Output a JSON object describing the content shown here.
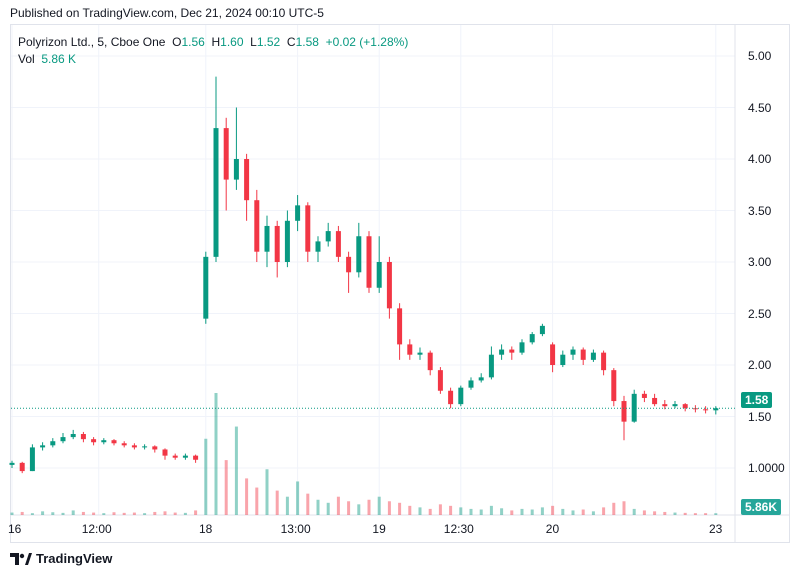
{
  "published": "Published on TradingView.com, Dec 21, 2024 00:10 UTC-5",
  "legend": {
    "symbol": "Polyrizon Ltd., 5, Cboe One",
    "o_label": "O",
    "o": "1.56",
    "h_label": "H",
    "h": "1.60",
    "l_label": "L",
    "l": "1.52",
    "c_label": "C",
    "c": "1.58",
    "change": "+0.02 (+1.28%)",
    "vol_label": "Vol",
    "vol": "5.86 K"
  },
  "colors": {
    "up": "#089981",
    "down": "#f23645",
    "last_price": "#089981",
    "volume_tag": "#26a69a"
  },
  "price_tag": "1.58",
  "volume_tag": "5.86K",
  "footer": {
    "logo_text": "TradingView",
    "icon": "tradingview-logo-icon"
  },
  "chart_data": {
    "type": "candlestick",
    "price_axis": {
      "ticks": [
        "5.00",
        "4.50",
        "4.00",
        "3.50",
        "3.00",
        "2.50",
        "2.00",
        "1.50",
        "1.0000"
      ],
      "tick_values": [
        5,
        4.5,
        4,
        3.5,
        3,
        2.5,
        2,
        1.5,
        1
      ],
      "range": [
        0.6,
        5.3
      ]
    },
    "time_axis": {
      "ticks": [
        "16",
        "12:00",
        "18",
        "13:00",
        "19",
        "12:30",
        "20",
        "23"
      ],
      "tick_index": [
        0,
        8.5,
        19,
        28,
        36,
        44,
        53,
        69
      ]
    },
    "grid": true,
    "last_price": 1.58,
    "ohlc": [
      [
        1.03,
        1.07,
        1.0,
        1.05
      ],
      [
        1.05,
        1.06,
        0.95,
        0.97
      ],
      [
        0.97,
        1.23,
        0.97,
        1.2
      ],
      [
        1.2,
        1.25,
        1.17,
        1.22
      ],
      [
        1.22,
        1.29,
        1.2,
        1.26
      ],
      [
        1.26,
        1.34,
        1.24,
        1.3
      ],
      [
        1.3,
        1.37,
        1.28,
        1.33
      ],
      [
        1.33,
        1.35,
        1.25,
        1.28
      ],
      [
        1.28,
        1.3,
        1.22,
        1.25
      ],
      [
        1.25,
        1.29,
        1.23,
        1.27
      ],
      [
        1.27,
        1.28,
        1.22,
        1.24
      ],
      [
        1.24,
        1.26,
        1.2,
        1.22
      ],
      [
        1.22,
        1.24,
        1.18,
        1.2
      ],
      [
        1.2,
        1.23,
        1.18,
        1.21
      ],
      [
        1.21,
        1.22,
        1.15,
        1.18
      ],
      [
        1.18,
        1.19,
        1.08,
        1.12
      ],
      [
        1.12,
        1.14,
        1.08,
        1.1
      ],
      [
        1.1,
        1.14,
        1.08,
        1.12
      ],
      [
        1.12,
        1.13,
        1.05,
        1.08
      ],
      [
        2.45,
        3.1,
        2.4,
        3.05
      ],
      [
        3.05,
        4.8,
        3.0,
        4.3
      ],
      [
        4.3,
        4.4,
        3.5,
        3.8
      ],
      [
        3.8,
        4.5,
        3.7,
        4.0
      ],
      [
        4.0,
        4.05,
        3.4,
        3.6
      ],
      [
        3.6,
        3.7,
        3.0,
        3.1
      ],
      [
        3.1,
        3.45,
        2.95,
        3.35
      ],
      [
        3.35,
        3.4,
        2.85,
        3.0
      ],
      [
        3.0,
        3.5,
        2.95,
        3.4
      ],
      [
        3.4,
        3.65,
        3.3,
        3.55
      ],
      [
        3.55,
        3.58,
        3.0,
        3.1
      ],
      [
        3.1,
        3.25,
        3.0,
        3.2
      ],
      [
        3.2,
        3.38,
        3.15,
        3.3
      ],
      [
        3.3,
        3.35,
        3.0,
        3.05
      ],
      [
        3.05,
        3.1,
        2.7,
        2.9
      ],
      [
        2.9,
        3.38,
        2.85,
        3.25
      ],
      [
        3.25,
        3.3,
        2.7,
        2.75
      ],
      [
        2.75,
        3.25,
        2.7,
        3.0
      ],
      [
        3.0,
        3.05,
        2.45,
        2.55
      ],
      [
        2.55,
        2.6,
        2.05,
        2.2
      ],
      [
        2.2,
        2.25,
        2.05,
        2.1
      ],
      [
        2.1,
        2.17,
        2.05,
        2.12
      ],
      [
        2.12,
        2.14,
        1.9,
        1.95
      ],
      [
        1.95,
        1.98,
        1.72,
        1.75
      ],
      [
        1.75,
        1.78,
        1.58,
        1.62
      ],
      [
        1.62,
        1.8,
        1.6,
        1.78
      ],
      [
        1.78,
        1.88,
        1.76,
        1.85
      ],
      [
        1.85,
        1.92,
        1.83,
        1.88
      ],
      [
        1.88,
        2.18,
        1.86,
        2.1
      ],
      [
        2.1,
        2.2,
        2.05,
        2.15
      ],
      [
        2.15,
        2.18,
        2.05,
        2.12
      ],
      [
        2.12,
        2.25,
        2.1,
        2.22
      ],
      [
        2.22,
        2.32,
        2.2,
        2.3
      ],
      [
        2.3,
        2.4,
        2.28,
        2.38
      ],
      [
        2.2,
        2.22,
        1.93,
        2.0
      ],
      [
        2.0,
        2.14,
        1.98,
        2.1
      ],
      [
        2.1,
        2.18,
        2.05,
        2.15
      ],
      [
        2.15,
        2.17,
        2.0,
        2.05
      ],
      [
        2.05,
        2.15,
        2.03,
        2.12
      ],
      [
        2.12,
        2.14,
        1.9,
        1.95
      ],
      [
        1.95,
        1.97,
        1.6,
        1.65
      ],
      [
        1.65,
        1.7,
        1.27,
        1.45
      ],
      [
        1.45,
        1.76,
        1.44,
        1.72
      ],
      [
        1.72,
        1.75,
        1.64,
        1.68
      ],
      [
        1.68,
        1.72,
        1.6,
        1.62
      ],
      [
        1.62,
        1.66,
        1.57,
        1.6
      ],
      [
        1.6,
        1.65,
        1.58,
        1.62
      ],
      [
        1.62,
        1.63,
        1.55,
        1.58
      ],
      [
        1.58,
        1.61,
        1.54,
        1.57
      ],
      [
        1.57,
        1.6,
        1.53,
        1.56
      ],
      [
        1.56,
        1.6,
        1.52,
        1.58
      ]
    ],
    "volume_k": [
      8,
      10,
      6,
      12,
      9,
      7,
      15,
      10,
      8,
      6,
      9,
      7,
      8,
      6,
      10,
      12,
      8,
      7,
      15,
      250,
      400,
      180,
      290,
      120,
      90,
      150,
      80,
      60,
      110,
      70,
      50,
      40,
      60,
      45,
      35,
      50,
      60,
      45,
      40,
      30,
      25,
      20,
      35,
      30,
      25,
      20,
      18,
      30,
      22,
      15,
      20,
      18,
      25,
      30,
      20,
      15,
      18,
      12,
      25,
      40,
      45,
      20,
      15,
      12,
      10,
      8,
      7,
      6,
      6,
      5.86
    ]
  }
}
